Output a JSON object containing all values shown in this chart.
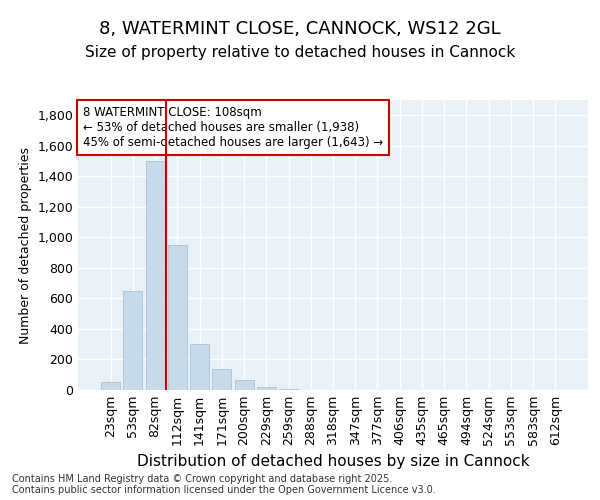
{
  "title_line1": "8, WATERMINT CLOSE, CANNOCK, WS12 2GL",
  "title_line2": "Size of property relative to detached houses in Cannock",
  "xlabel": "Distribution of detached houses by size in Cannock",
  "ylabel": "Number of detached properties",
  "bar_color": "#c8d9ea",
  "bar_edge_color": "#a0bdd4",
  "categories": [
    "23sqm",
    "53sqm",
    "82sqm",
    "112sqm",
    "141sqm",
    "171sqm",
    "200sqm",
    "229sqm",
    "259sqm",
    "288sqm",
    "318sqm",
    "347sqm",
    "377sqm",
    "406sqm",
    "435sqm",
    "465sqm",
    "494sqm",
    "524sqm",
    "553sqm",
    "583sqm",
    "612sqm"
  ],
  "values": [
    50,
    650,
    1500,
    950,
    300,
    135,
    65,
    20,
    5,
    2,
    0,
    2,
    0,
    0,
    0,
    0,
    0,
    0,
    0,
    0,
    0
  ],
  "ylim": [
    0,
    1900
  ],
  "yticks": [
    0,
    200,
    400,
    600,
    800,
    1000,
    1200,
    1400,
    1600,
    1800
  ],
  "vline_x_index": 2.5,
  "vline_color": "#cc0000",
  "annotation_box_text": "8 WATERMINT CLOSE: 108sqm\n← 53% of detached houses are smaller (1,938)\n45% of semi-detached houses are larger (1,643) →",
  "annotation_box_color": "#cc0000",
  "annotation_box_bg": "#ffffff",
  "plot_bg_color": "#e8f0f8",
  "fig_bg_color": "#ffffff",
  "grid_color": "#ffffff",
  "footer_line1": "Contains HM Land Registry data © Crown copyright and database right 2025.",
  "footer_line2": "Contains public sector information licensed under the Open Government Licence v3.0.",
  "title_fontsize": 13,
  "subtitle_fontsize": 11,
  "xlabel_fontsize": 11,
  "ylabel_fontsize": 9,
  "tick_fontsize": 9,
  "footer_fontsize": 7
}
